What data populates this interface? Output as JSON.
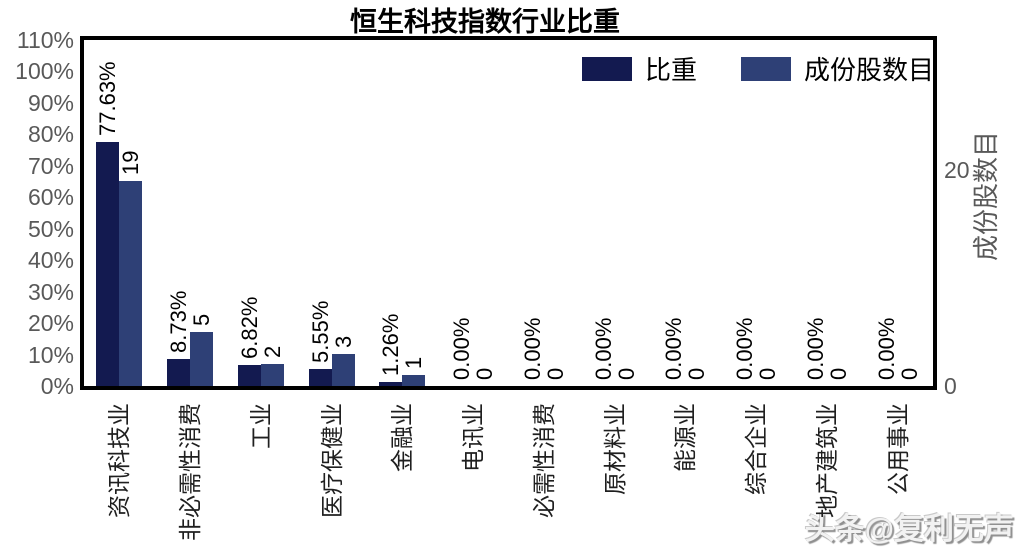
{
  "chart_data": {
    "type": "bar",
    "title": "恒生科技指数行业比重",
    "categories": [
      "资讯科技业",
      "非必需性消费",
      "工业",
      "医疗保健业",
      "金融业",
      "电讯业",
      "必需性消费",
      "原材料业",
      "能源业",
      "综合企业",
      "地产建筑业",
      "公用事业"
    ],
    "series": [
      {
        "name": "比重",
        "axis": "left",
        "color": "#131A50",
        "values": [
          77.63,
          8.73,
          6.82,
          5.55,
          1.26,
          0,
          0,
          0,
          0,
          0,
          0,
          0
        ],
        "labels": [
          "77.63%",
          "8.73%",
          "6.82%",
          "5.55%",
          "1.26%",
          "0.00%",
          "0.00%",
          "0.00%",
          "0.00%",
          "0.00%",
          "0.00%",
          "0.00%"
        ]
      },
      {
        "name": "成份股数目",
        "axis": "right",
        "color": "#2E4076",
        "values": [
          19,
          5,
          2,
          3,
          1,
          0,
          0,
          0,
          0,
          0,
          0,
          0
        ],
        "labels": [
          "19",
          "5",
          "2",
          "3",
          "1",
          "0",
          "0",
          "0",
          "0",
          "0",
          "0",
          "0"
        ]
      }
    ],
    "left_axis": {
      "min": 0,
      "max": 110,
      "tick_step": 10,
      "tick_labels": [
        "0%",
        "10%",
        "20%",
        "30%",
        "40%",
        "50%",
        "60%",
        "70%",
        "80%",
        "90%",
        "100%",
        "110%"
      ]
    },
    "right_axis": {
      "title": "成份股数目",
      "min": 0,
      "max": 32,
      "ticks": [
        0,
        20
      ],
      "tick_labels": [
        "0",
        "20"
      ]
    },
    "legend_position": "top-right-inside",
    "grid": false,
    "colors": {
      "tick_text": "#595959",
      "value_label_text": "#000000",
      "plot_border": "#000000"
    }
  },
  "watermark": "头条@复利无声"
}
